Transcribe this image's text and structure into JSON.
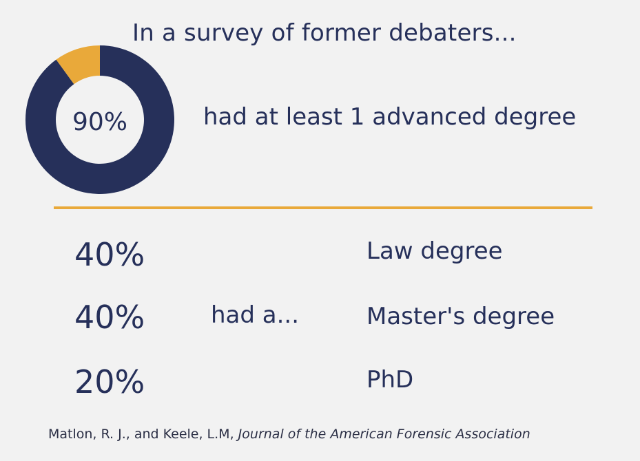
{
  "title": "In a survey of former debaters...",
  "colors": {
    "primary": "#26305a",
    "accent": "#e9a93a",
    "background": "#f2f2f2"
  },
  "chart_data": {
    "type": "pie",
    "variant": "donut",
    "center_label": "90%",
    "slices": [
      {
        "value": 90,
        "color": "#26305a"
      },
      {
        "value": 10,
        "color": "#e9a93a"
      }
    ]
  },
  "headline": "had at least 1 advanced degree",
  "breakdown": {
    "connector": "had a...",
    "rows": [
      {
        "value": "40%",
        "label": "Law degree"
      },
      {
        "value": "40%",
        "label": "Master's degree"
      },
      {
        "value": "20%",
        "label": "PhD"
      }
    ]
  },
  "source": {
    "authors": "Matlon, R. J., and Keele, L.M, ",
    "journal": "Journal of the American Forensic Association"
  }
}
